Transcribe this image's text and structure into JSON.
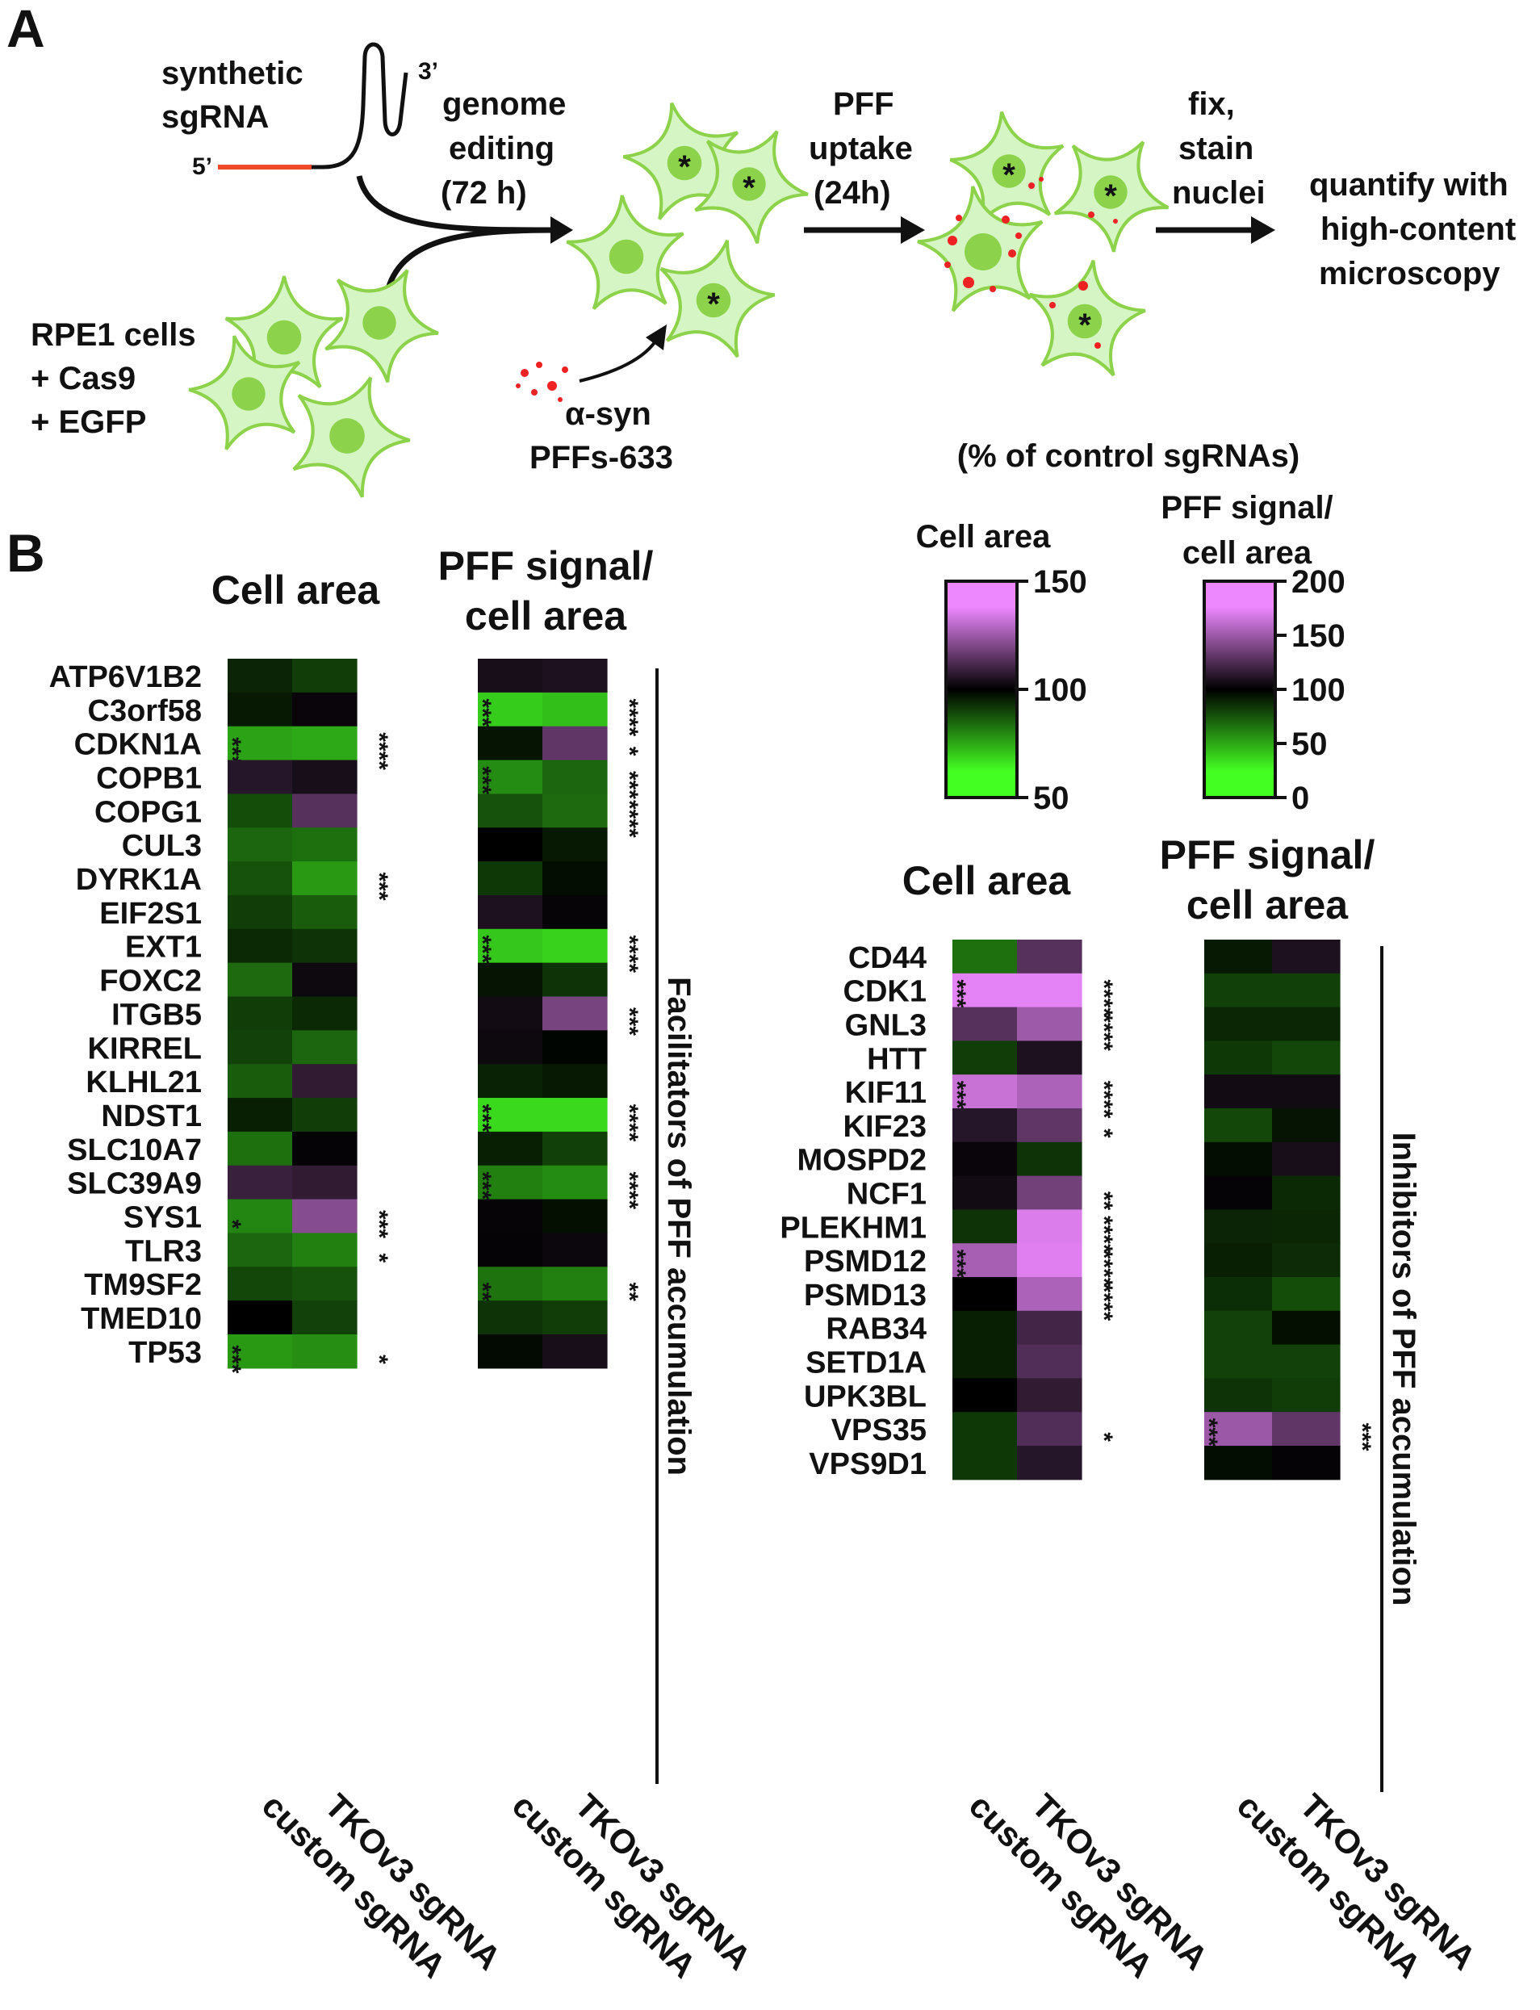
{
  "panel_a": {
    "label": "A",
    "sgrna_label_1": "synthetic",
    "sgrna_label_2": "sgRNA",
    "end_5": "5’",
    "end_3": "3’",
    "cells_line_1": "RPE1 cells",
    "cells_line_2": "+ Cas9",
    "cells_line_3": "+ EGFP",
    "step1_line_1": "genome",
    "step1_line_2": "editing",
    "step1_line_3": "(72 h)",
    "pff_line_1": "α-syn",
    "pff_line_2": "PFFs-633",
    "step2_line_1": "PFF",
    "step2_line_2": "uptake",
    "step2_line_3": "(24h)",
    "step3_line_1": "fix,",
    "step3_line_2": "stain",
    "step3_line_3": "nuclei",
    "step4_line_1": "quantify with",
    "step4_line_2": "high-content",
    "step4_line_3": "microscopy",
    "knockout_marker": "*"
  },
  "panel_b": {
    "label": "B",
    "cell_area_title": "Cell area",
    "pff_title_1": "PFF signal/",
    "pff_title_2": "cell area",
    "col_label_1": "custom sgRNA",
    "col_label_2": "TKOv3 sgRNA",
    "facilitators_label": "Facilitators of PFF accumulation",
    "inhibitors_label": "Inhibitors of PFF accumulation"
  },
  "legend": {
    "title": "(% of control sgRNAs)",
    "cell_area_label": "Cell area",
    "pff_label_1": "PFF signal/",
    "pff_label_2": "cell area",
    "cell_area_ticks": [
      "150",
      "100",
      "50"
    ],
    "pff_ticks": [
      "200",
      "150",
      "100",
      "50",
      "0"
    ],
    "color_high": "#ee88ff",
    "color_mid": "#000000",
    "color_low": "#44ff22"
  },
  "chart_data": [
    {
      "type": "heatmap",
      "group": "Facilitators of PFF accumulation",
      "title": "",
      "columns": [
        "custom sgRNA",
        "TKOv3 sgRNA"
      ],
      "rows": [
        "ATP6V1B2",
        "C3orf58",
        "CDKN1A",
        "COPB1",
        "COPG1",
        "CUL3",
        "DYRK1A",
        "EIF2S1",
        "EXT1",
        "FOXC2",
        "ITGB5",
        "KIRREL",
        "KLHL21",
        "NDST1",
        "SLC10A7",
        "SLC39A9",
        "SYS1",
        "TLR3",
        "TM9SF2",
        "TMED10",
        "TP53"
      ],
      "panels": [
        {
          "title": "Cell area",
          "scale": [
            50,
            150
          ],
          "values": [
            [
              93,
              88
            ],
            [
              95,
              102
            ],
            [
              68,
              67
            ],
            [
              108,
              105
            ],
            [
              85,
              118
            ],
            [
              80,
              78
            ],
            [
              84,
              70
            ],
            [
              88,
              82
            ],
            [
              92,
              90
            ],
            [
              79,
              103
            ],
            [
              88,
              92
            ],
            [
              87,
              80
            ],
            [
              82,
              110
            ],
            [
              94,
              88
            ],
            [
              78,
              101
            ],
            [
              112,
              110
            ],
            [
              74,
              128
            ],
            [
              80,
              75
            ],
            [
              86,
              84
            ],
            [
              100,
              87
            ],
            [
              70,
              72
            ]
          ],
          "significance": [
            [
              "",
              ""
            ],
            [
              "",
              ""
            ],
            [
              "***",
              "****"
            ],
            [
              "",
              ""
            ],
            [
              "",
              ""
            ],
            [
              "",
              ""
            ],
            [
              "",
              "***"
            ],
            [
              "",
              ""
            ],
            [
              "",
              ""
            ],
            [
              "",
              ""
            ],
            [
              "",
              ""
            ],
            [
              "",
              ""
            ],
            [
              "",
              ""
            ],
            [
              "",
              ""
            ],
            [
              "",
              ""
            ],
            [
              "",
              ""
            ],
            [
              "*",
              "***"
            ],
            [
              "",
              "*"
            ],
            [
              "",
              ""
            ],
            [
              "",
              ""
            ],
            [
              "***",
              "*"
            ]
          ]
        },
        {
          "title": "PFF signal/cell area",
          "scale": [
            0,
            200
          ],
          "values": [
            [
              110,
              112
            ],
            [
              20,
              25
            ],
            [
              92,
              140
            ],
            [
              45,
              60
            ],
            [
              68,
              58
            ],
            [
              100,
              90
            ],
            [
              78,
              95
            ],
            [
              112,
              103
            ],
            [
              22,
              18
            ],
            [
              92,
              80
            ],
            [
              108,
              150
            ],
            [
              106,
              98
            ],
            [
              87,
              90
            ],
            [
              15,
              15
            ],
            [
              88,
              75
            ],
            [
              50,
              45
            ],
            [
              103,
              94
            ],
            [
              102,
              105
            ],
            [
              55,
              50
            ],
            [
              80,
              76
            ],
            [
              96,
              110
            ]
          ],
          "significance": [
            [
              "",
              ""
            ],
            [
              "****",
              "****"
            ],
            [
              "",
              "*"
            ],
            [
              "****",
              "***"
            ],
            [
              "",
              "****"
            ],
            [
              "",
              ""
            ],
            [
              "",
              ""
            ],
            [
              "",
              ""
            ],
            [
              "****",
              "****"
            ],
            [
              "",
              ""
            ],
            [
              "",
              "***"
            ],
            [
              "",
              ""
            ],
            [
              "",
              ""
            ],
            [
              "****",
              "****"
            ],
            [
              "",
              ""
            ],
            [
              "****",
              "****"
            ],
            [
              "",
              ""
            ],
            [
              "",
              ""
            ],
            [
              "**",
              "**"
            ],
            [
              "",
              ""
            ],
            [
              "",
              ""
            ]
          ]
        }
      ]
    },
    {
      "type": "heatmap",
      "group": "Inhibitors of PFF accumulation",
      "title": "",
      "columns": [
        "custom sgRNA",
        "TKOv3 sgRNA"
      ],
      "rows": [
        "CD44",
        "CDK1",
        "GNL3",
        "HTT",
        "KIF11",
        "KIF23",
        "MOSPD2",
        "NCF1",
        "PLEKHM1",
        "PSMD12",
        "PSMD13",
        "RAB34",
        "SETD1A",
        "UPK3BL",
        "VPS35",
        "VPS9D1"
      ],
      "panels": [
        {
          "title": "Cell area",
          "scale": [
            50,
            150
          ],
          "values": [
            [
              78,
              118
            ],
            [
              148,
              148
            ],
            [
              118,
              133
            ],
            [
              88,
              106
            ],
            [
              142,
              136
            ],
            [
              108,
              120
            ],
            [
              102,
              90
            ],
            [
              104,
              124
            ],
            [
              90,
              146
            ],
            [
              135,
              147
            ],
            [
              100,
              136
            ],
            [
              94,
              114
            ],
            [
              94,
              117
            ],
            [
              100,
              110
            ],
            [
              89,
              117
            ],
            [
              89,
              108
            ]
          ],
          "significance": [
            [
              "",
              ""
            ],
            [
              "****",
              "****"
            ],
            [
              "",
              "****"
            ],
            [
              "",
              ""
            ],
            [
              "****",
              "****"
            ],
            [
              "",
              "*"
            ],
            [
              "",
              ""
            ],
            [
              "",
              "**"
            ],
            [
              "",
              "****"
            ],
            [
              "****",
              "****"
            ],
            [
              "",
              "****"
            ],
            [
              "",
              ""
            ],
            [
              "",
              ""
            ],
            [
              "",
              ""
            ],
            [
              "",
              "*"
            ],
            [
              "",
              ""
            ]
          ]
        },
        {
          "title": "PFF signal/cell area",
          "scale": [
            0,
            200
          ],
          "values": [
            [
              90,
              112
            ],
            [
              75,
              75
            ],
            [
              85,
              85
            ],
            [
              78,
              72
            ],
            [
              108,
              108
            ],
            [
              72,
              92
            ],
            [
              95,
              110
            ],
            [
              102,
              84
            ],
            [
              86,
              85
            ],
            [
              88,
              83
            ],
            [
              82,
              70
            ],
            [
              74,
              94
            ],
            [
              74,
              74
            ],
            [
              80,
              76
            ],
            [
              165,
              140
            ],
            [
              95,
              102
            ]
          ],
          "significance": [
            [
              "",
              ""
            ],
            [
              "",
              ""
            ],
            [
              "",
              ""
            ],
            [
              "",
              ""
            ],
            [
              "",
              ""
            ],
            [
              "",
              ""
            ],
            [
              "",
              ""
            ],
            [
              "",
              ""
            ],
            [
              "",
              ""
            ],
            [
              "",
              ""
            ],
            [
              "",
              ""
            ],
            [
              "",
              ""
            ],
            [
              "",
              ""
            ],
            [
              "",
              ""
            ],
            [
              "****",
              "***"
            ],
            [
              "",
              ""
            ]
          ]
        }
      ]
    }
  ]
}
